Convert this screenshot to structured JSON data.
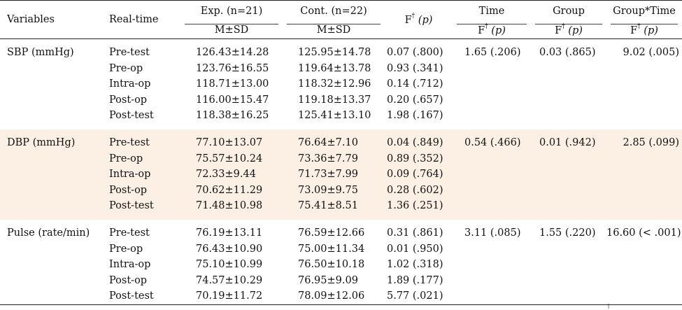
{
  "header": {
    "variables": "Variables",
    "realtime": "Real-time",
    "exp": "Exp. (n=21)",
    "cont": "Cont. (n=22)",
    "f_label": "F",
    "dagger": "†",
    "p_label": "(p)",
    "time": "Time",
    "group": "Group",
    "groupxtime": "Group*Time",
    "msd": "M±SD"
  },
  "groups": [
    {
      "variable": "SBP (mmHg)",
      "time_effect": "1.65 (.206)",
      "group_effect": "0.03 (.865)",
      "interaction": "9.02 (.005)",
      "rows": [
        {
          "time": "Pre-test",
          "exp": "126.43±14.28",
          "cont": "125.95±14.78",
          "f": "0.07 (.800)"
        },
        {
          "time": "Pre-op",
          "exp": "123.76±16.55",
          "cont": "119.64±13.78",
          "f": "0.93 (.341)"
        },
        {
          "time": "Intra-op",
          "exp": "118.71±13.00",
          "cont": "118.32±12.96",
          "f": "0.14 (.712)"
        },
        {
          "time": "Post-op",
          "exp": "116.00±15.47",
          "cont": "119.18±13.37",
          "f": "0.20 (.657)"
        },
        {
          "time": "Post-test",
          "exp": "118.38±16.25",
          "cont": "125.41±13.10",
          "f": "1.98 (.167)"
        }
      ]
    },
    {
      "variable": "DBP (mmHg)",
      "time_effect": "0.54 (.466)",
      "group_effect": "0.01 (.942)",
      "interaction": "2.85 (.099)",
      "rows": [
        {
          "time": "Pre-test",
          "exp": "77.10±13.07",
          "cont": "76.64±7.10",
          "f": "0.04 (.849)"
        },
        {
          "time": "Pre-op",
          "exp": "75.57±10.24",
          "cont": "73.36±7.79",
          "f": "0.89 (.352)"
        },
        {
          "time": "Intra-op",
          "exp": "72.33±9.44",
          "cont": "71.73±7.99",
          "f": "0.09 (.764)"
        },
        {
          "time": "Post-op",
          "exp": "70.62±11.29",
          "cont": "73.09±9.75",
          "f": "0.28 (.602)"
        },
        {
          "time": "Post-test",
          "exp": "71.48±10.98",
          "cont": "75.41±8.51",
          "f": "1.36 (.251)"
        }
      ]
    },
    {
      "variable": "Pulse (rate/min)",
      "time_effect": "3.11 (.085)",
      "group_effect": "1.55 (.220)",
      "interaction": "16.60 (< .001)",
      "rows": [
        {
          "time": "Pre-test",
          "exp": "76.19±13.11",
          "cont": "76.59±12.66",
          "f": "0.31 (.861)"
        },
        {
          "time": "Pre-op",
          "exp": "76.43±10.90",
          "cont": "75.00±11.34",
          "f": "0.01 (.950)"
        },
        {
          "time": "Intra-op",
          "exp": "75.10±10.99",
          "cont": "76.50±10.18",
          "f": "1.02 (.318)"
        },
        {
          "time": "Post-op",
          "exp": "74.57±10.29",
          "cont": "76.95±9.09",
          "f": "1.89 (.177)"
        },
        {
          "time": "Post-test",
          "exp": "70.19±11.72",
          "cont": "78.09±12.06",
          "f": "5.77 (.021)"
        }
      ]
    }
  ],
  "footnote_mark": "†"
}
